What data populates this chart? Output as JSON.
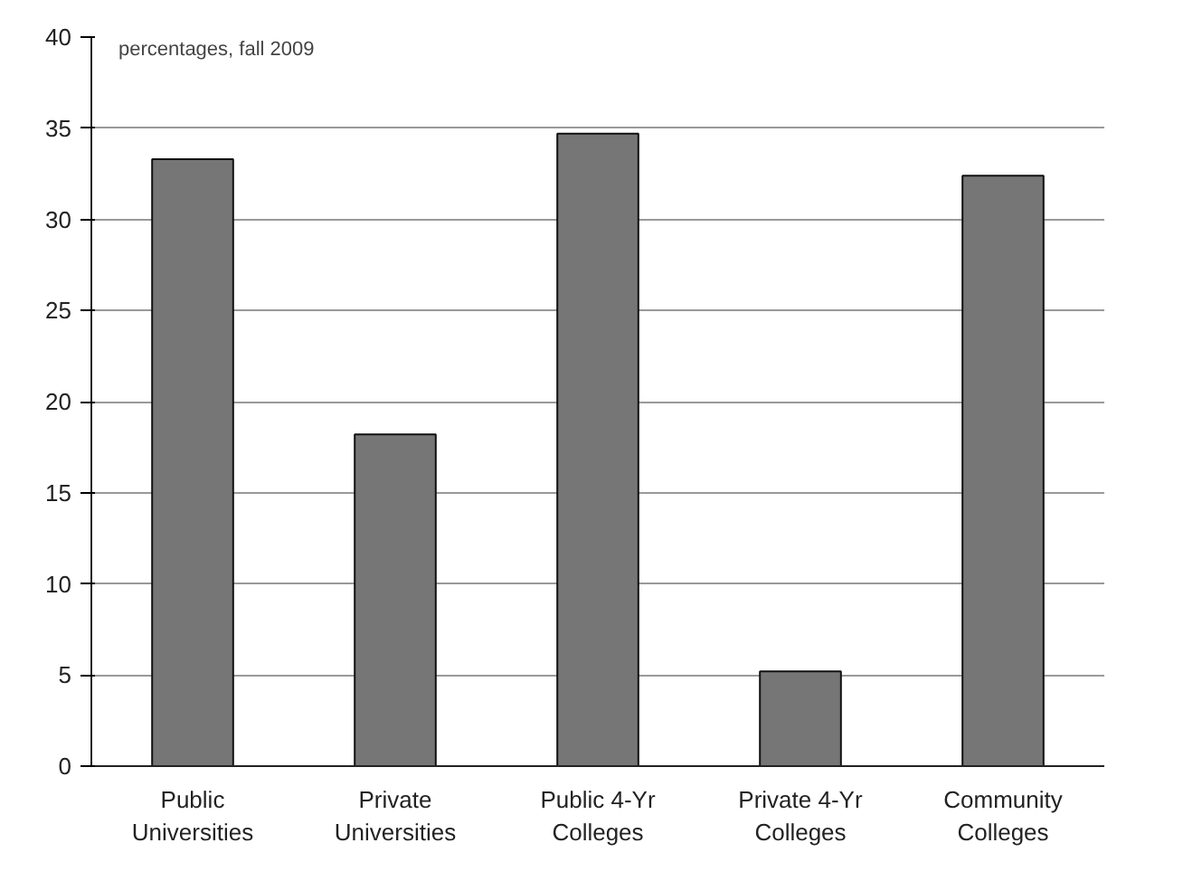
{
  "chart_data": {
    "type": "bar",
    "categories": [
      "Public\nUniversities",
      "Private\nUniversities",
      "Public 4-Yr\nColleges",
      "Private 4-Yr\nColleges",
      "Community\nColleges"
    ],
    "values": [
      33.3,
      18.2,
      34.7,
      5.2,
      32.4
    ],
    "color": "#767676",
    "ylim": [
      0,
      40
    ],
    "yticks": [
      0,
      5,
      10,
      15,
      20,
      25,
      30,
      35,
      40
    ],
    "grid": "y",
    "annotations": [
      "percentages, fall 2009"
    ]
  }
}
